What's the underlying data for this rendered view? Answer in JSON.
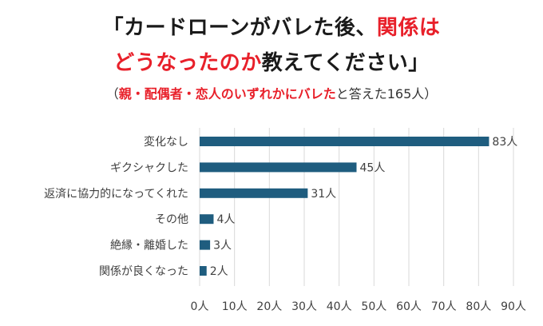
{
  "title": {
    "line1_black": "「カードローンがバレた後、",
    "line1_red": "関係は",
    "line2_red": "どうなったのか",
    "line2_black": "教えてください」"
  },
  "subtitle": {
    "open": "（",
    "red": "親・配偶者・恋人のいずれかにバレた",
    "rest": "と答えた165人）"
  },
  "colors": {
    "bar": "#1f5d7f",
    "accent": "#e8202a",
    "grid": "#d9d9d9",
    "text": "#404040"
  },
  "chart_data": {
    "type": "bar",
    "orientation": "horizontal",
    "categories": [
      "変化なし",
      "ギクシャクした",
      "返済に協力的になってくれた",
      "その他",
      "絶縁・離婚した",
      "関係が良くなった"
    ],
    "values": [
      83,
      45,
      31,
      4,
      3,
      2
    ],
    "value_labels": [
      "83人",
      "45人",
      "31人",
      "4人",
      "3人",
      "2人"
    ],
    "xlim": [
      0,
      90
    ],
    "xticks": [
      0,
      10,
      20,
      30,
      40,
      50,
      60,
      70,
      80,
      90
    ],
    "xtick_labels": [
      "0人",
      "10人",
      "20人",
      "30人",
      "40人",
      "50人",
      "60人",
      "70人",
      "80人",
      "90人"
    ],
    "grid": true
  }
}
